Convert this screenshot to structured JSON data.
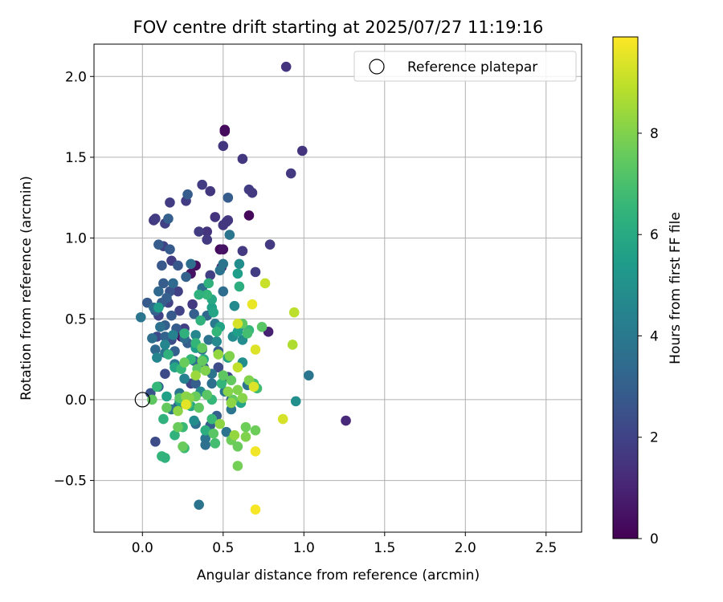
{
  "chart_data": {
    "type": "scatter",
    "title": "FOV centre drift starting at 2025/07/27 11:19:16",
    "xlabel": "Angular distance from reference (arcmin)",
    "ylabel": "Rotation from reference (arcmin)",
    "xlim": [
      -0.3,
      2.72
    ],
    "ylim": [
      -0.82,
      2.2
    ],
    "xticks": [
      0.0,
      0.5,
      1.0,
      1.5,
      2.0,
      2.5
    ],
    "xtick_labels": [
      "0.0",
      "0.5",
      "1.0",
      "1.5",
      "2.0",
      "2.5"
    ],
    "yticks": [
      -0.5,
      0.0,
      0.5,
      1.0,
      1.5,
      2.0
    ],
    "ytick_labels": [
      "−0.5",
      "0.0",
      "0.5",
      "1.0",
      "1.5",
      "2.0"
    ],
    "grid": true,
    "legend": {
      "placement": "top-right",
      "entries": [
        {
          "label": "Reference platepar",
          "marker": "open-circle"
        }
      ]
    },
    "reference_point": {
      "x": 0.0,
      "y": 0.0
    },
    "colorbar": {
      "label": "Hours from first FF file",
      "colormap": "viridis",
      "range": [
        0,
        9.9
      ],
      "ticks": [
        0,
        2,
        4,
        6,
        8
      ],
      "tick_labels": [
        "0",
        "2",
        "4",
        "6",
        "8"
      ]
    },
    "points": [
      [
        0.51,
        1.67,
        0.2
      ],
      [
        0.51,
        1.66,
        0.3
      ],
      [
        0.66,
        1.14,
        0.2
      ],
      [
        0.48,
        0.93,
        0.3
      ],
      [
        0.5,
        0.93,
        0.5
      ],
      [
        0.3,
        0.78,
        0.5
      ],
      [
        0.33,
        0.83,
        0.4
      ],
      [
        0.49,
        0.82,
        0.8
      ],
      [
        0.24,
        0.39,
        0.6
      ],
      [
        0.78,
        0.42,
        0.9
      ],
      [
        1.26,
        -0.13,
        1.1
      ],
      [
        0.89,
        2.06,
        1.5
      ],
      [
        0.99,
        1.54,
        1.5
      ],
      [
        0.92,
        1.4,
        1.7
      ],
      [
        0.62,
        1.49,
        1.6
      ],
      [
        0.5,
        1.57,
        1.6
      ],
      [
        0.66,
        1.3,
        1.8
      ],
      [
        0.68,
        1.28,
        1.7
      ],
      [
        0.42,
        1.29,
        1.6
      ],
      [
        0.37,
        1.33,
        1.8
      ],
      [
        0.45,
        1.13,
        1.5
      ],
      [
        0.53,
        1.11,
        1.7
      ],
      [
        0.52,
        1.1,
        1.6
      ],
      [
        0.5,
        1.08,
        1.6
      ],
      [
        0.4,
        1.04,
        1.5
      ],
      [
        0.4,
        0.99,
        1.7
      ],
      [
        0.35,
        1.04,
        1.8
      ],
      [
        0.79,
        0.96,
        1.7
      ],
      [
        0.62,
        0.92,
        1.7
      ],
      [
        0.7,
        0.79,
        1.8
      ],
      [
        0.07,
        1.11,
        1.6
      ],
      [
        0.14,
        1.09,
        1.9
      ],
      [
        0.17,
        1.22,
        1.8
      ],
      [
        0.27,
        1.23,
        1.8
      ],
      [
        0.08,
        1.12,
        1.8
      ],
      [
        0.13,
        0.95,
        2.0
      ],
      [
        0.18,
        0.86,
        1.8
      ],
      [
        0.42,
        0.77,
        1.9
      ],
      [
        0.22,
        0.67,
        1.9
      ],
      [
        0.16,
        0.6,
        2.0
      ],
      [
        0.23,
        0.55,
        2.0
      ],
      [
        0.1,
        0.52,
        2.0
      ],
      [
        0.31,
        0.59,
        1.7
      ],
      [
        0.09,
        0.39,
        2.2
      ],
      [
        0.18,
        0.37,
        2.3
      ],
      [
        0.26,
        0.44,
        1.9
      ],
      [
        0.14,
        0.16,
        2.3
      ],
      [
        0.3,
        0.1,
        2.1
      ],
      [
        0.37,
        0.2,
        2.2
      ],
      [
        0.53,
        0.14,
        2.1
      ],
      [
        0.47,
        0.2,
        2.3
      ],
      [
        0.08,
        -0.26,
        2.3
      ],
      [
        0.28,
        1.27,
        2.9
      ],
      [
        0.53,
        1.25,
        2.9
      ],
      [
        0.16,
        1.12,
        3.0
      ],
      [
        0.1,
        0.96,
        2.9
      ],
      [
        0.17,
        0.93,
        2.8
      ],
      [
        0.22,
        0.83,
        2.7
      ],
      [
        0.12,
        0.83,
        2.7
      ],
      [
        0.13,
        0.72,
        2.9
      ],
      [
        0.17,
        0.67,
        2.6
      ],
      [
        0.15,
        0.63,
        3.0
      ],
      [
        0.03,
        0.6,
        2.8
      ],
      [
        0.12,
        0.6,
        2.9
      ],
      [
        0.08,
        0.55,
        3.0
      ],
      [
        0.18,
        0.52,
        2.8
      ],
      [
        0.21,
        0.44,
        2.8
      ],
      [
        0.32,
        0.53,
        3.0
      ],
      [
        0.14,
        0.46,
        3.0
      ],
      [
        0.14,
        0.39,
        3.1
      ],
      [
        0.28,
        0.35,
        3.0
      ],
      [
        0.2,
        0.3,
        3.0
      ],
      [
        0.38,
        0.2,
        3.0
      ],
      [
        0.47,
        0.3,
        3.0
      ],
      [
        0.33,
        0.1,
        3.0
      ],
      [
        0.55,
        0.0,
        3.0
      ],
      [
        0.05,
        0.04,
        2.6
      ],
      [
        0.22,
        -0.04,
        3.0
      ],
      [
        0.42,
        -0.16,
        3.0
      ],
      [
        0.46,
        -0.1,
        3.0
      ],
      [
        0.1,
        0.08,
        3.0
      ],
      [
        0.27,
        0.76,
        3.1
      ],
      [
        0.08,
        0.31,
        3.3
      ],
      [
        0.1,
        0.67,
        3.3
      ],
      [
        0.54,
        1.02,
        3.9
      ],
      [
        0.5,
        0.84,
        3.8
      ],
      [
        0.48,
        0.8,
        3.8
      ],
      [
        0.3,
        0.84,
        3.6
      ],
      [
        0.37,
        0.69,
        3.5
      ],
      [
        0.19,
        0.72,
        3.4
      ],
      [
        0.07,
        0.57,
        3.5
      ],
      [
        0.4,
        0.52,
        3.3
      ],
      [
        0.5,
        0.67,
        3.5
      ],
      [
        0.11,
        0.45,
        3.7
      ],
      [
        0.26,
        0.38,
        3.5
      ],
      [
        0.41,
        0.37,
        3.8
      ],
      [
        0.37,
        0.31,
        3.6
      ],
      [
        0.06,
        0.38,
        3.6
      ],
      [
        0.14,
        0.29,
        3.8
      ],
      [
        0.2,
        0.22,
        3.9
      ],
      [
        0.32,
        0.24,
        3.4
      ],
      [
        0.43,
        0.16,
        3.8
      ],
      [
        0.43,
        0.1,
        3.6
      ],
      [
        0.51,
        0.05,
        3.9
      ],
      [
        0.65,
        0.09,
        3.8
      ],
      [
        0.23,
        0.04,
        3.9
      ],
      [
        0.18,
        -0.06,
        3.9
      ],
      [
        0.33,
        -0.15,
        3.6
      ],
      [
        0.39,
        -0.24,
        3.9
      ],
      [
        0.39,
        -0.28,
        3.7
      ],
      [
        0.55,
        -0.06,
        3.9
      ],
      [
        1.03,
        0.15,
        3.9
      ],
      [
        0.35,
        -0.65,
        3.8
      ],
      [
        0.52,
        -0.2,
        3.8
      ],
      [
        -0.01,
        0.51,
        3.9
      ],
      [
        0.45,
        0.47,
        4.0
      ],
      [
        0.6,
        0.84,
        4.8
      ],
      [
        0.57,
        0.58,
        4.7
      ],
      [
        0.56,
        0.39,
        4.8
      ],
      [
        0.62,
        0.37,
        4.8
      ],
      [
        0.46,
        0.36,
        4.7
      ],
      [
        0.33,
        0.4,
        4.6
      ],
      [
        0.19,
        0.4,
        4.4
      ],
      [
        0.14,
        0.34,
        4.5
      ],
      [
        0.09,
        0.26,
        4.5
      ],
      [
        0.26,
        0.13,
        4.4
      ],
      [
        0.36,
        0.05,
        4.7
      ],
      [
        0.62,
        0.23,
        4.9
      ],
      [
        0.32,
        -0.13,
        4.8
      ],
      [
        0.45,
        -0.27,
        4.9
      ],
      [
        0.95,
        -0.01,
        4.9
      ],
      [
        0.6,
        0.45,
        4.8
      ],
      [
        0.59,
        0.78,
        5.5
      ],
      [
        0.43,
        0.57,
        5.6
      ],
      [
        0.48,
        0.45,
        5.7
      ],
      [
        0.59,
        0.42,
        5.5
      ],
      [
        0.53,
        0.26,
        5.6
      ],
      [
        0.33,
        0.32,
        5.5
      ],
      [
        0.2,
        0.2,
        5.8
      ],
      [
        0.15,
        0.02,
        5.6
      ],
      [
        0.23,
        -0.01,
        5.7
      ],
      [
        0.3,
        -0.04,
        5.9
      ],
      [
        0.61,
        -0.02,
        5.8
      ],
      [
        0.43,
        0.62,
        5.9
      ],
      [
        0.44,
        0.54,
        5.8
      ],
      [
        0.38,
        0.25,
        6.0
      ],
      [
        0.1,
        0.57,
        5.5
      ],
      [
        0.41,
        0.72,
        6.3
      ],
      [
        0.6,
        0.7,
        6.2
      ],
      [
        0.4,
        0.65,
        6.5
      ],
      [
        0.35,
        0.65,
        6.3
      ],
      [
        0.36,
        0.49,
        6.4
      ],
      [
        0.26,
        0.41,
        6.3
      ],
      [
        0.33,
        0.35,
        6.5
      ],
      [
        0.16,
        0.28,
        6.3
      ],
      [
        0.3,
        0.25,
        6.5
      ],
      [
        0.24,
        0.19,
        6.6
      ],
      [
        0.49,
        0.1,
        6.5
      ],
      [
        0.43,
        0.0,
        6.6
      ],
      [
        0.13,
        -0.12,
        6.4
      ],
      [
        0.25,
        -0.17,
        6.7
      ],
      [
        0.2,
        -0.22,
        6.4
      ],
      [
        0.12,
        -0.35,
        6.5
      ],
      [
        0.26,
        -0.3,
        6.7
      ],
      [
        0.14,
        -0.36,
        6.4
      ],
      [
        0.71,
        0.07,
        6.8
      ],
      [
        0.46,
        0.42,
        6.5
      ],
      [
        0.09,
        0.08,
        6.6
      ],
      [
        0.66,
        0.43,
        6.6
      ],
      [
        0.65,
        0.41,
        6.9
      ],
      [
        0.69,
        0.1,
        6.9
      ],
      [
        0.28,
        -0.02,
        6.6
      ],
      [
        0.43,
        -0.12,
        6.7
      ],
      [
        0.45,
        -0.27,
        6.9
      ],
      [
        0.39,
        -0.19,
        6.2
      ],
      [
        0.74,
        0.45,
        7.3
      ],
      [
        0.62,
        0.47,
        7.4
      ],
      [
        0.37,
        0.32,
        7.5
      ],
      [
        0.37,
        0.24,
        7.5
      ],
      [
        0.34,
        0.19,
        7.3
      ],
      [
        0.26,
        0.23,
        7.6
      ],
      [
        0.5,
        0.15,
        7.4
      ],
      [
        0.55,
        0.12,
        7.5
      ],
      [
        0.4,
        0.03,
        7.3
      ],
      [
        0.33,
        0.02,
        7.6
      ],
      [
        0.23,
        0.01,
        7.3
      ],
      [
        0.06,
        0.0,
        7.4
      ],
      [
        0.15,
        -0.05,
        7.5
      ],
      [
        0.22,
        -0.17,
        7.6
      ],
      [
        0.55,
        -0.25,
        7.7
      ],
      [
        0.59,
        -0.41,
        7.8
      ],
      [
        0.59,
        -0.29,
        7.6
      ],
      [
        0.44,
        -0.21,
        7.3
      ],
      [
        0.25,
        -0.29,
        7.6
      ],
      [
        0.35,
        -0.05,
        7.4
      ],
      [
        0.28,
        -0.03,
        7.3
      ],
      [
        0.7,
        -0.19,
        7.7
      ],
      [
        0.64,
        -0.17,
        7.7
      ],
      [
        0.56,
        0.0,
        7.5
      ],
      [
        0.66,
        0.12,
        8.0
      ],
      [
        0.53,
        0.05,
        8.1
      ],
      [
        0.59,
        0.06,
        8.0
      ],
      [
        0.62,
        0.01,
        8.1
      ],
      [
        0.55,
        -0.02,
        8.2
      ],
      [
        0.64,
        -0.23,
        8.0
      ],
      [
        0.57,
        -0.22,
        8.3
      ],
      [
        0.48,
        -0.15,
        8.2
      ],
      [
        0.39,
        0.18,
        8.0
      ],
      [
        0.33,
        0.15,
        8.4
      ],
      [
        0.27,
        0.02,
        8.2
      ],
      [
        0.22,
        -0.07,
        8.2
      ],
      [
        0.47,
        0.28,
        8.3
      ],
      [
        0.54,
        0.27,
        8.0
      ],
      [
        0.29,
        0.01,
        8.1
      ],
      [
        0.27,
        -0.03,
        8.4
      ],
      [
        0.93,
        0.34,
        8.7
      ],
      [
        0.94,
        0.54,
        8.9
      ],
      [
        0.76,
        0.72,
        9.1
      ],
      [
        0.59,
        0.2,
        9.0
      ],
      [
        0.59,
        0.47,
        9.3
      ],
      [
        0.7,
        0.31,
        9.4
      ],
      [
        0.68,
        0.59,
        9.6
      ],
      [
        0.69,
        0.08,
        9.4
      ],
      [
        0.87,
        -0.12,
        9.3
      ],
      [
        0.7,
        -0.32,
        9.7
      ],
      [
        0.7,
        -0.68,
        9.8
      ],
      [
        0.27,
        -0.03,
        9.5
      ]
    ]
  }
}
